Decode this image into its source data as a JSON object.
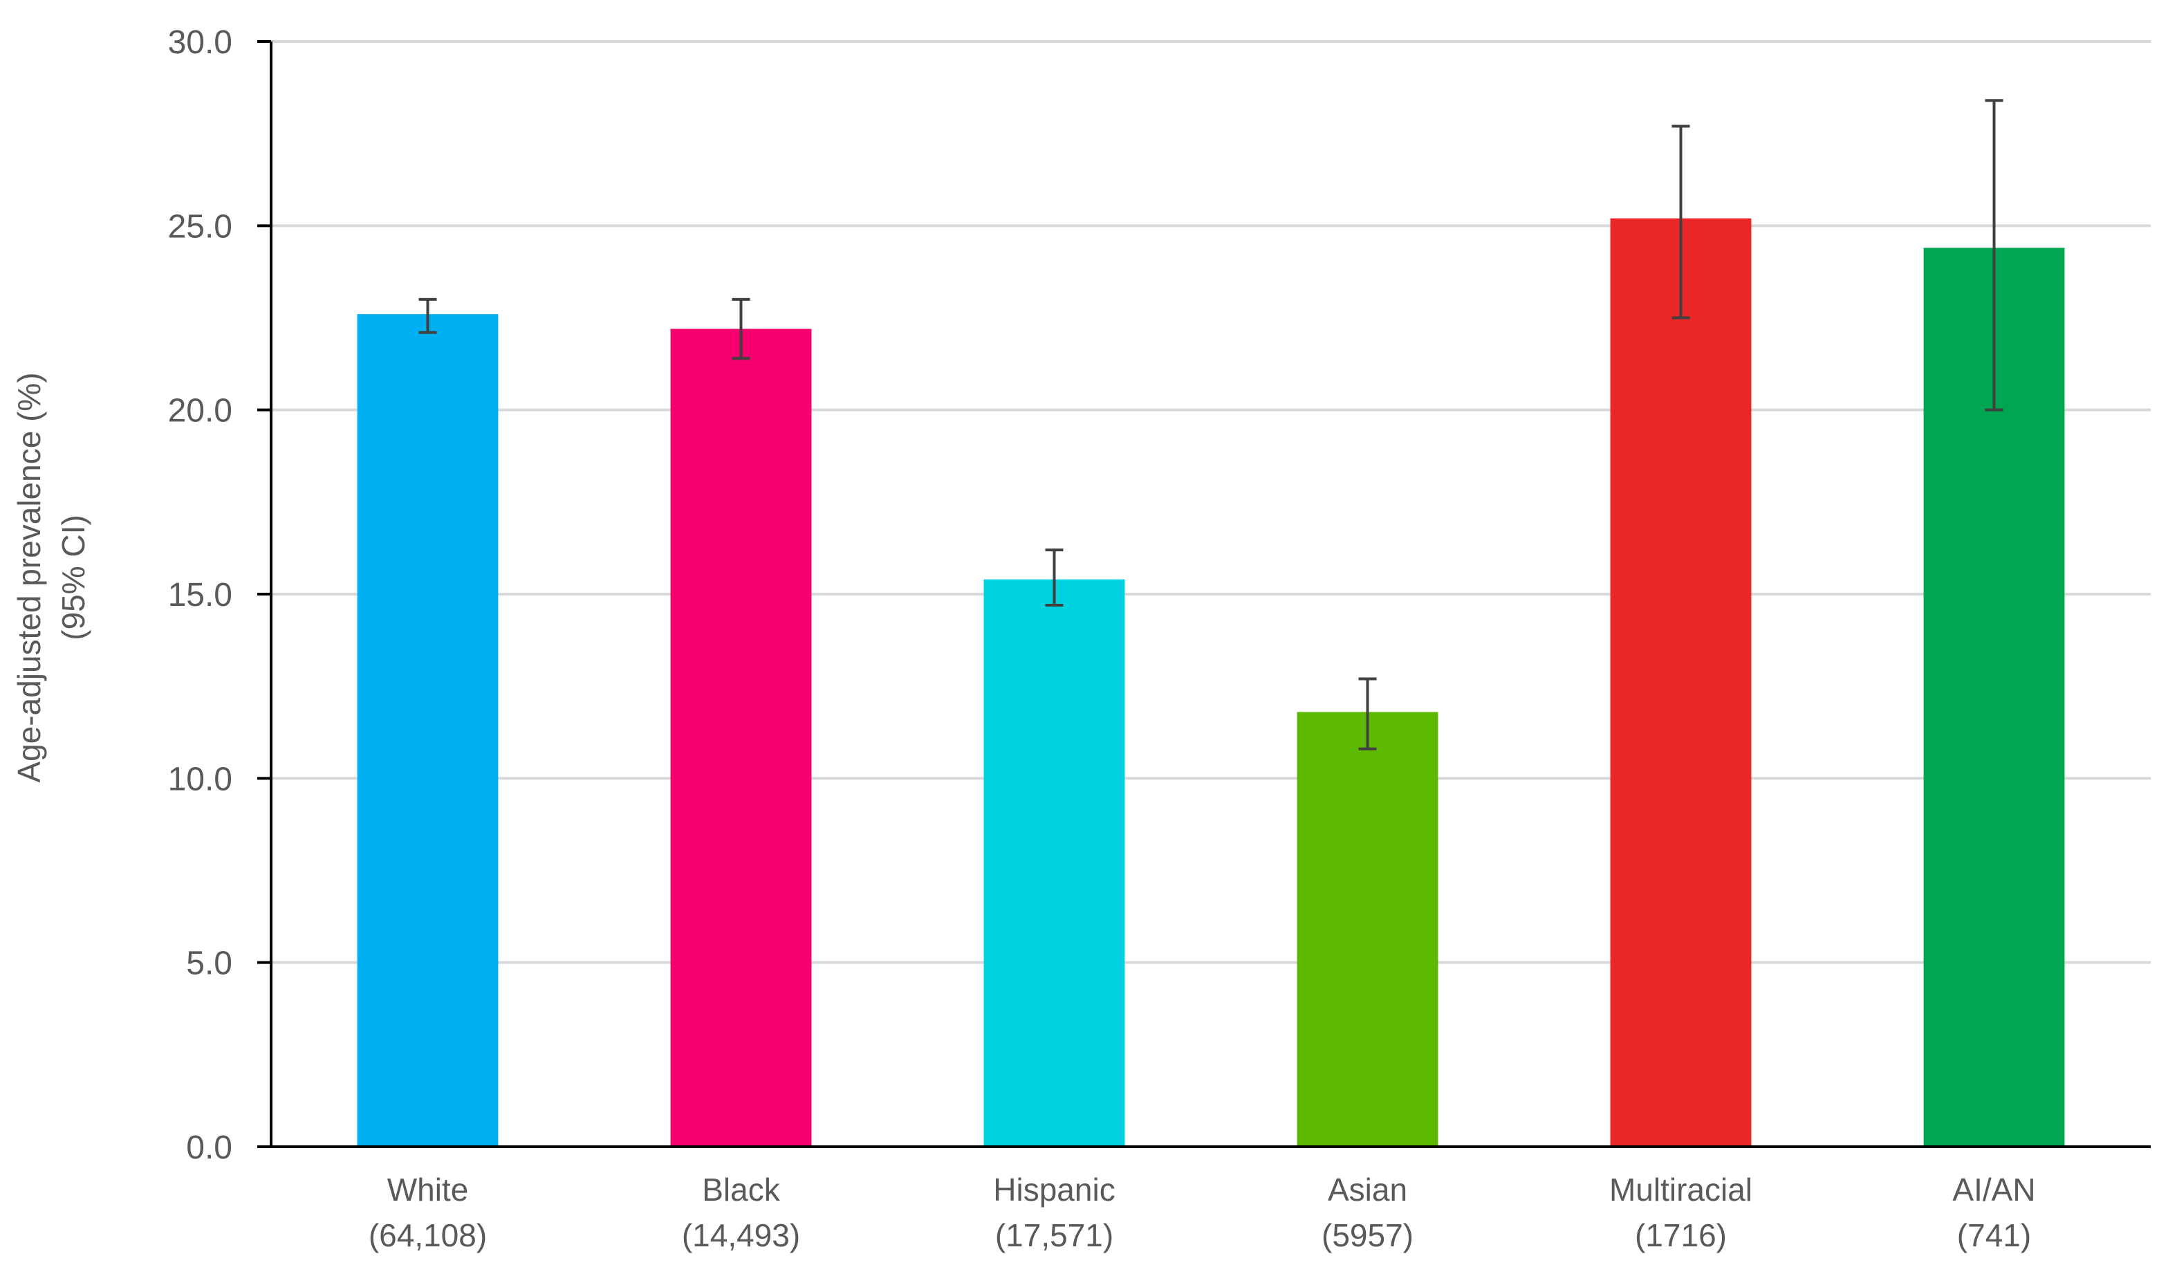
{
  "chart_data": {
    "type": "bar",
    "categories": [
      "White",
      "Black",
      "Hispanic",
      "Asian",
      "Multiracial",
      "AI/AN"
    ],
    "category_counts": [
      "(64,108)",
      "(14,493)",
      "(17,571)",
      "(5957)",
      "(1716)",
      "(741)"
    ],
    "values": [
      22.6,
      22.2,
      15.4,
      11.8,
      25.2,
      24.4
    ],
    "ci_lower": [
      22.1,
      21.4,
      14.7,
      10.8,
      22.5,
      20.0
    ],
    "ci_upper": [
      23.0,
      23.0,
      16.2,
      12.7,
      27.7,
      28.4
    ],
    "colors": [
      "#00b0f0",
      "#f5006e",
      "#00d2e0",
      "#5cb800",
      "#ea2628",
      "#00a651"
    ],
    "ylabel_line1": "Age-adjusted prevalence (%)",
    "ylabel_line2": "(95% CI)",
    "ylim": [
      0,
      30
    ],
    "yticks": [
      "0.0",
      "5.0",
      "10.0",
      "15.0",
      "20.0",
      "25.0",
      "30.0"
    ],
    "ytick_values": [
      0,
      5,
      10,
      15,
      20,
      25,
      30
    ],
    "grid": true,
    "gridline_color": "#d9d9d9",
    "errorbar_color": "#404040",
    "axis_color": "#000000"
  }
}
